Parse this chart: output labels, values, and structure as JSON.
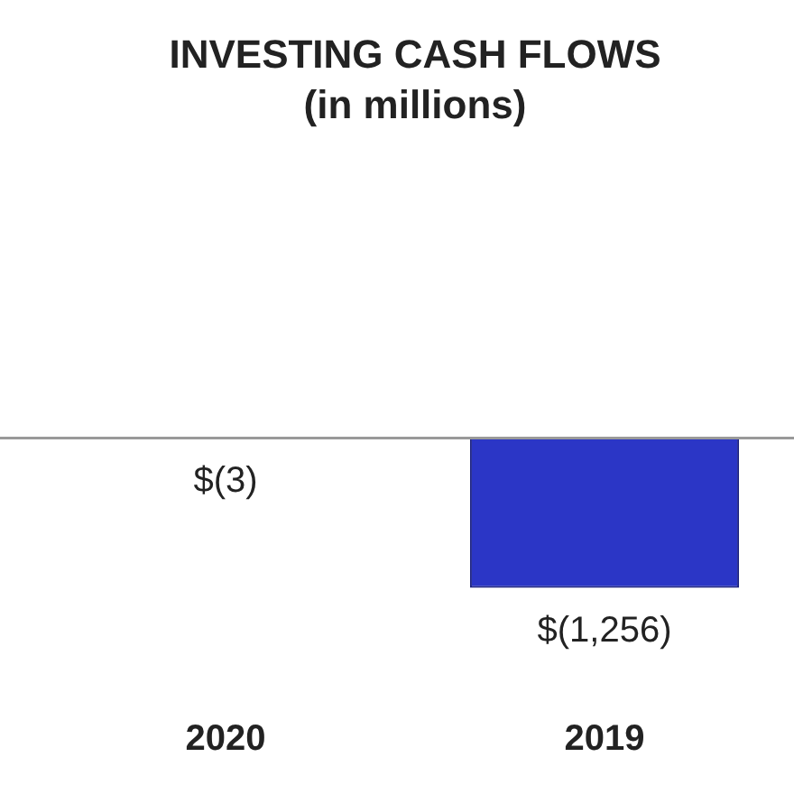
{
  "chart_data": {
    "type": "bar",
    "title": "INVESTING CASH FLOWS",
    "subtitle": "(in millions)",
    "categories": [
      "2020",
      "2019"
    ],
    "values": [
      -3,
      -1256
    ],
    "value_labels": [
      "$(3)",
      "$(1,256)"
    ],
    "color": "#2b36c6"
  }
}
